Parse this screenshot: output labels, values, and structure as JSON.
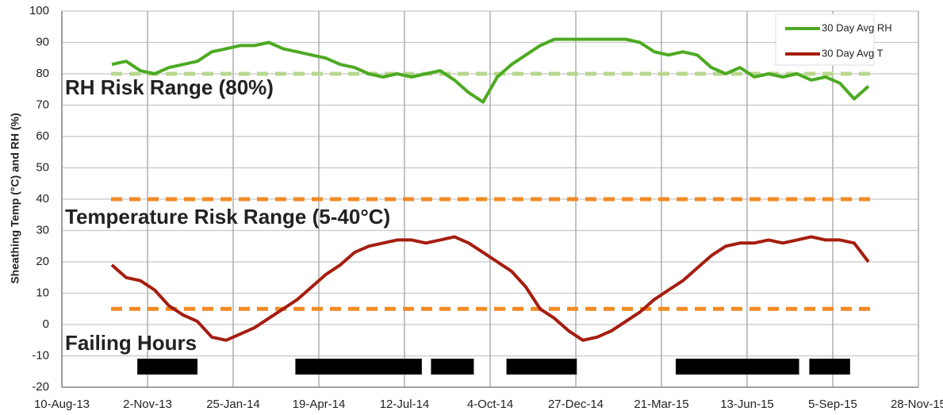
{
  "chart_data": {
    "type": "line",
    "y_label": "Sheathing Temp (°C) and RH (%)",
    "x": [
      "2013-09-28",
      "2013-10-12",
      "2013-10-26",
      "2013-11-09",
      "2013-11-23",
      "2013-12-07",
      "2013-12-21",
      "2014-01-04",
      "2014-01-18",
      "2014-02-01",
      "2014-02-15",
      "2014-03-01",
      "2014-03-15",
      "2014-03-29",
      "2014-04-12",
      "2014-04-26",
      "2014-05-10",
      "2014-05-24",
      "2014-06-07",
      "2014-06-21",
      "2014-07-05",
      "2014-07-19",
      "2014-08-02",
      "2014-08-16",
      "2014-08-30",
      "2014-09-13",
      "2014-09-27",
      "2014-10-11",
      "2014-10-25",
      "2014-11-08",
      "2014-11-22",
      "2014-12-06",
      "2014-12-20",
      "2015-01-03",
      "2015-01-17",
      "2015-01-31",
      "2015-02-14",
      "2015-02-28",
      "2015-03-14",
      "2015-03-28",
      "2015-04-11",
      "2015-04-25",
      "2015-05-09",
      "2015-05-23",
      "2015-06-06",
      "2015-06-20",
      "2015-07-04",
      "2015-07-18",
      "2015-08-01",
      "2015-08-15",
      "2015-08-29",
      "2015-09-12",
      "2015-09-26",
      "2015-10-10"
    ],
    "series": [
      {
        "name": "30 Day Avg RH",
        "color": "#4caa22",
        "values": [
          83,
          84,
          81,
          80,
          82,
          83,
          84,
          87,
          88,
          89,
          89,
          90,
          88,
          87,
          86,
          85,
          83,
          82,
          80,
          79,
          80,
          79,
          80,
          81,
          78,
          74,
          71,
          79,
          83,
          86,
          89,
          91,
          91,
          91,
          91,
          91,
          91,
          90,
          87,
          86,
          87,
          86,
          82,
          80,
          82,
          79,
          80,
          79,
          80,
          78,
          79,
          77,
          72,
          76
        ]
      },
      {
        "name": "30 Day Avg T",
        "color": "#a51d0f",
        "values": [
          19,
          15,
          14,
          11,
          6,
          3,
          1,
          -4,
          -5,
          -3,
          -1,
          2,
          5,
          8,
          12,
          16,
          19,
          23,
          25,
          26,
          27,
          27,
          26,
          27,
          28,
          26,
          23,
          20,
          17,
          12,
          5,
          2,
          -2,
          -5,
          -4,
          -2,
          1,
          4,
          8,
          11,
          14,
          18,
          22,
          25,
          26,
          26,
          27,
          26,
          27,
          28,
          27,
          27,
          26,
          20
        ]
      }
    ],
    "reference_lines": [
      {
        "value": 80,
        "color": "#b8d88e"
      },
      {
        "value": 40,
        "color": "#f28a24"
      },
      {
        "value": 5,
        "color": "#f28a24"
      }
    ],
    "annotations": [
      {
        "text": "RH Risk Range (80%)",
        "color": "#7b9b46"
      },
      {
        "text": "Temperature Risk Range (5-40°C)",
        "color": "#ea7a22"
      },
      {
        "text": "Failing Hours",
        "color": "#000000"
      }
    ],
    "failing_periods": [
      [
        "2013-10-23",
        "2013-12-21"
      ],
      [
        "2014-03-27",
        "2014-07-29"
      ],
      [
        "2014-08-07",
        "2014-09-18"
      ],
      [
        "2014-10-20",
        "2014-12-28"
      ],
      [
        "2015-04-04",
        "2015-08-03"
      ],
      [
        "2015-08-13",
        "2015-09-22"
      ]
    ],
    "failing_color": "#000000",
    "xlim": [
      "2013-08-10",
      "2015-11-28"
    ],
    "xticks": [
      {
        "value": "2013-08-10",
        "label": "10-Aug-13"
      },
      {
        "value": "2013-11-02",
        "label": "2-Nov-13"
      },
      {
        "value": "2014-01-25",
        "label": "25-Jan-14"
      },
      {
        "value": "2014-04-19",
        "label": "19-Apr-14"
      },
      {
        "value": "2014-07-12",
        "label": "12-Jul-14"
      },
      {
        "value": "2014-10-04",
        "label": "4-Oct-14"
      },
      {
        "value": "2014-12-27",
        "label": "27-Dec-14"
      },
      {
        "value": "2015-03-21",
        "label": "21-Mar-15"
      },
      {
        "value": "2015-06-13",
        "label": "13-Jun-15"
      },
      {
        "value": "2015-09-05",
        "label": "5-Sep-15"
      },
      {
        "value": "2015-11-28",
        "label": "28-Nov-15"
      }
    ],
    "ylim": [
      -20,
      100
    ],
    "yticks": [
      -20,
      -10,
      0,
      10,
      20,
      30,
      40,
      50,
      60,
      70,
      80,
      90,
      100
    ],
    "grid": true,
    "legend": "top-right"
  }
}
